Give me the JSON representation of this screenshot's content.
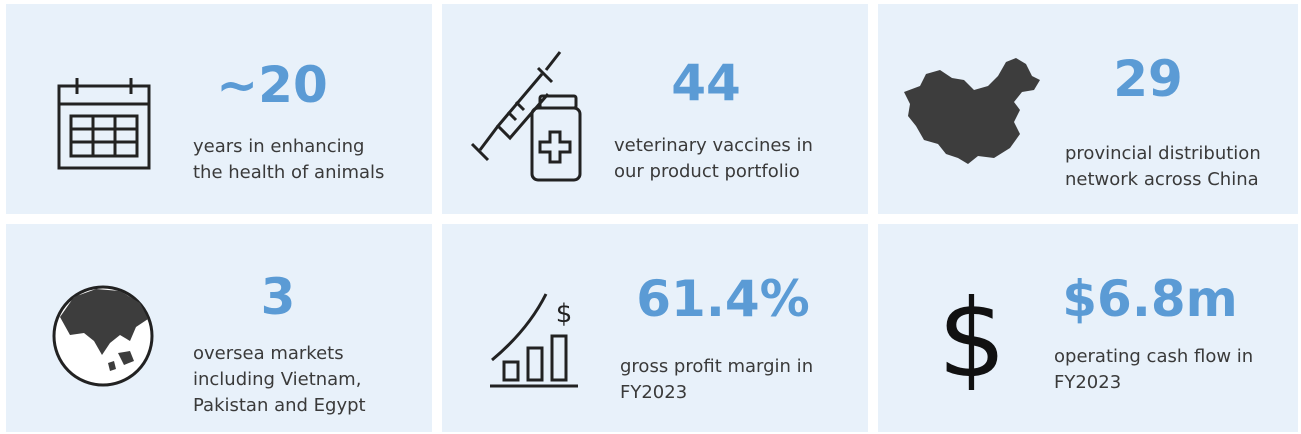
{
  "cards": [
    {
      "value": "~20",
      "description": [
        "years in enhancing",
        "the health of animals"
      ]
    },
    {
      "value": "44",
      "description": [
        "veterinary vaccines in",
        "our product portfolio"
      ]
    },
    {
      "value": "29",
      "description": [
        "provincial distribution",
        "network across China"
      ]
    },
    {
      "value": "3",
      "description": [
        "oversea markets",
        "including Vietnam,",
        "Pakistan and Egypt"
      ]
    },
    {
      "value": "61.4%",
      "description": [
        "gross profit margin in",
        "FY2023"
      ]
    },
    {
      "value": "$6.8m",
      "description": [
        "operating cash flow in",
        "FY2023"
      ]
    }
  ]
}
